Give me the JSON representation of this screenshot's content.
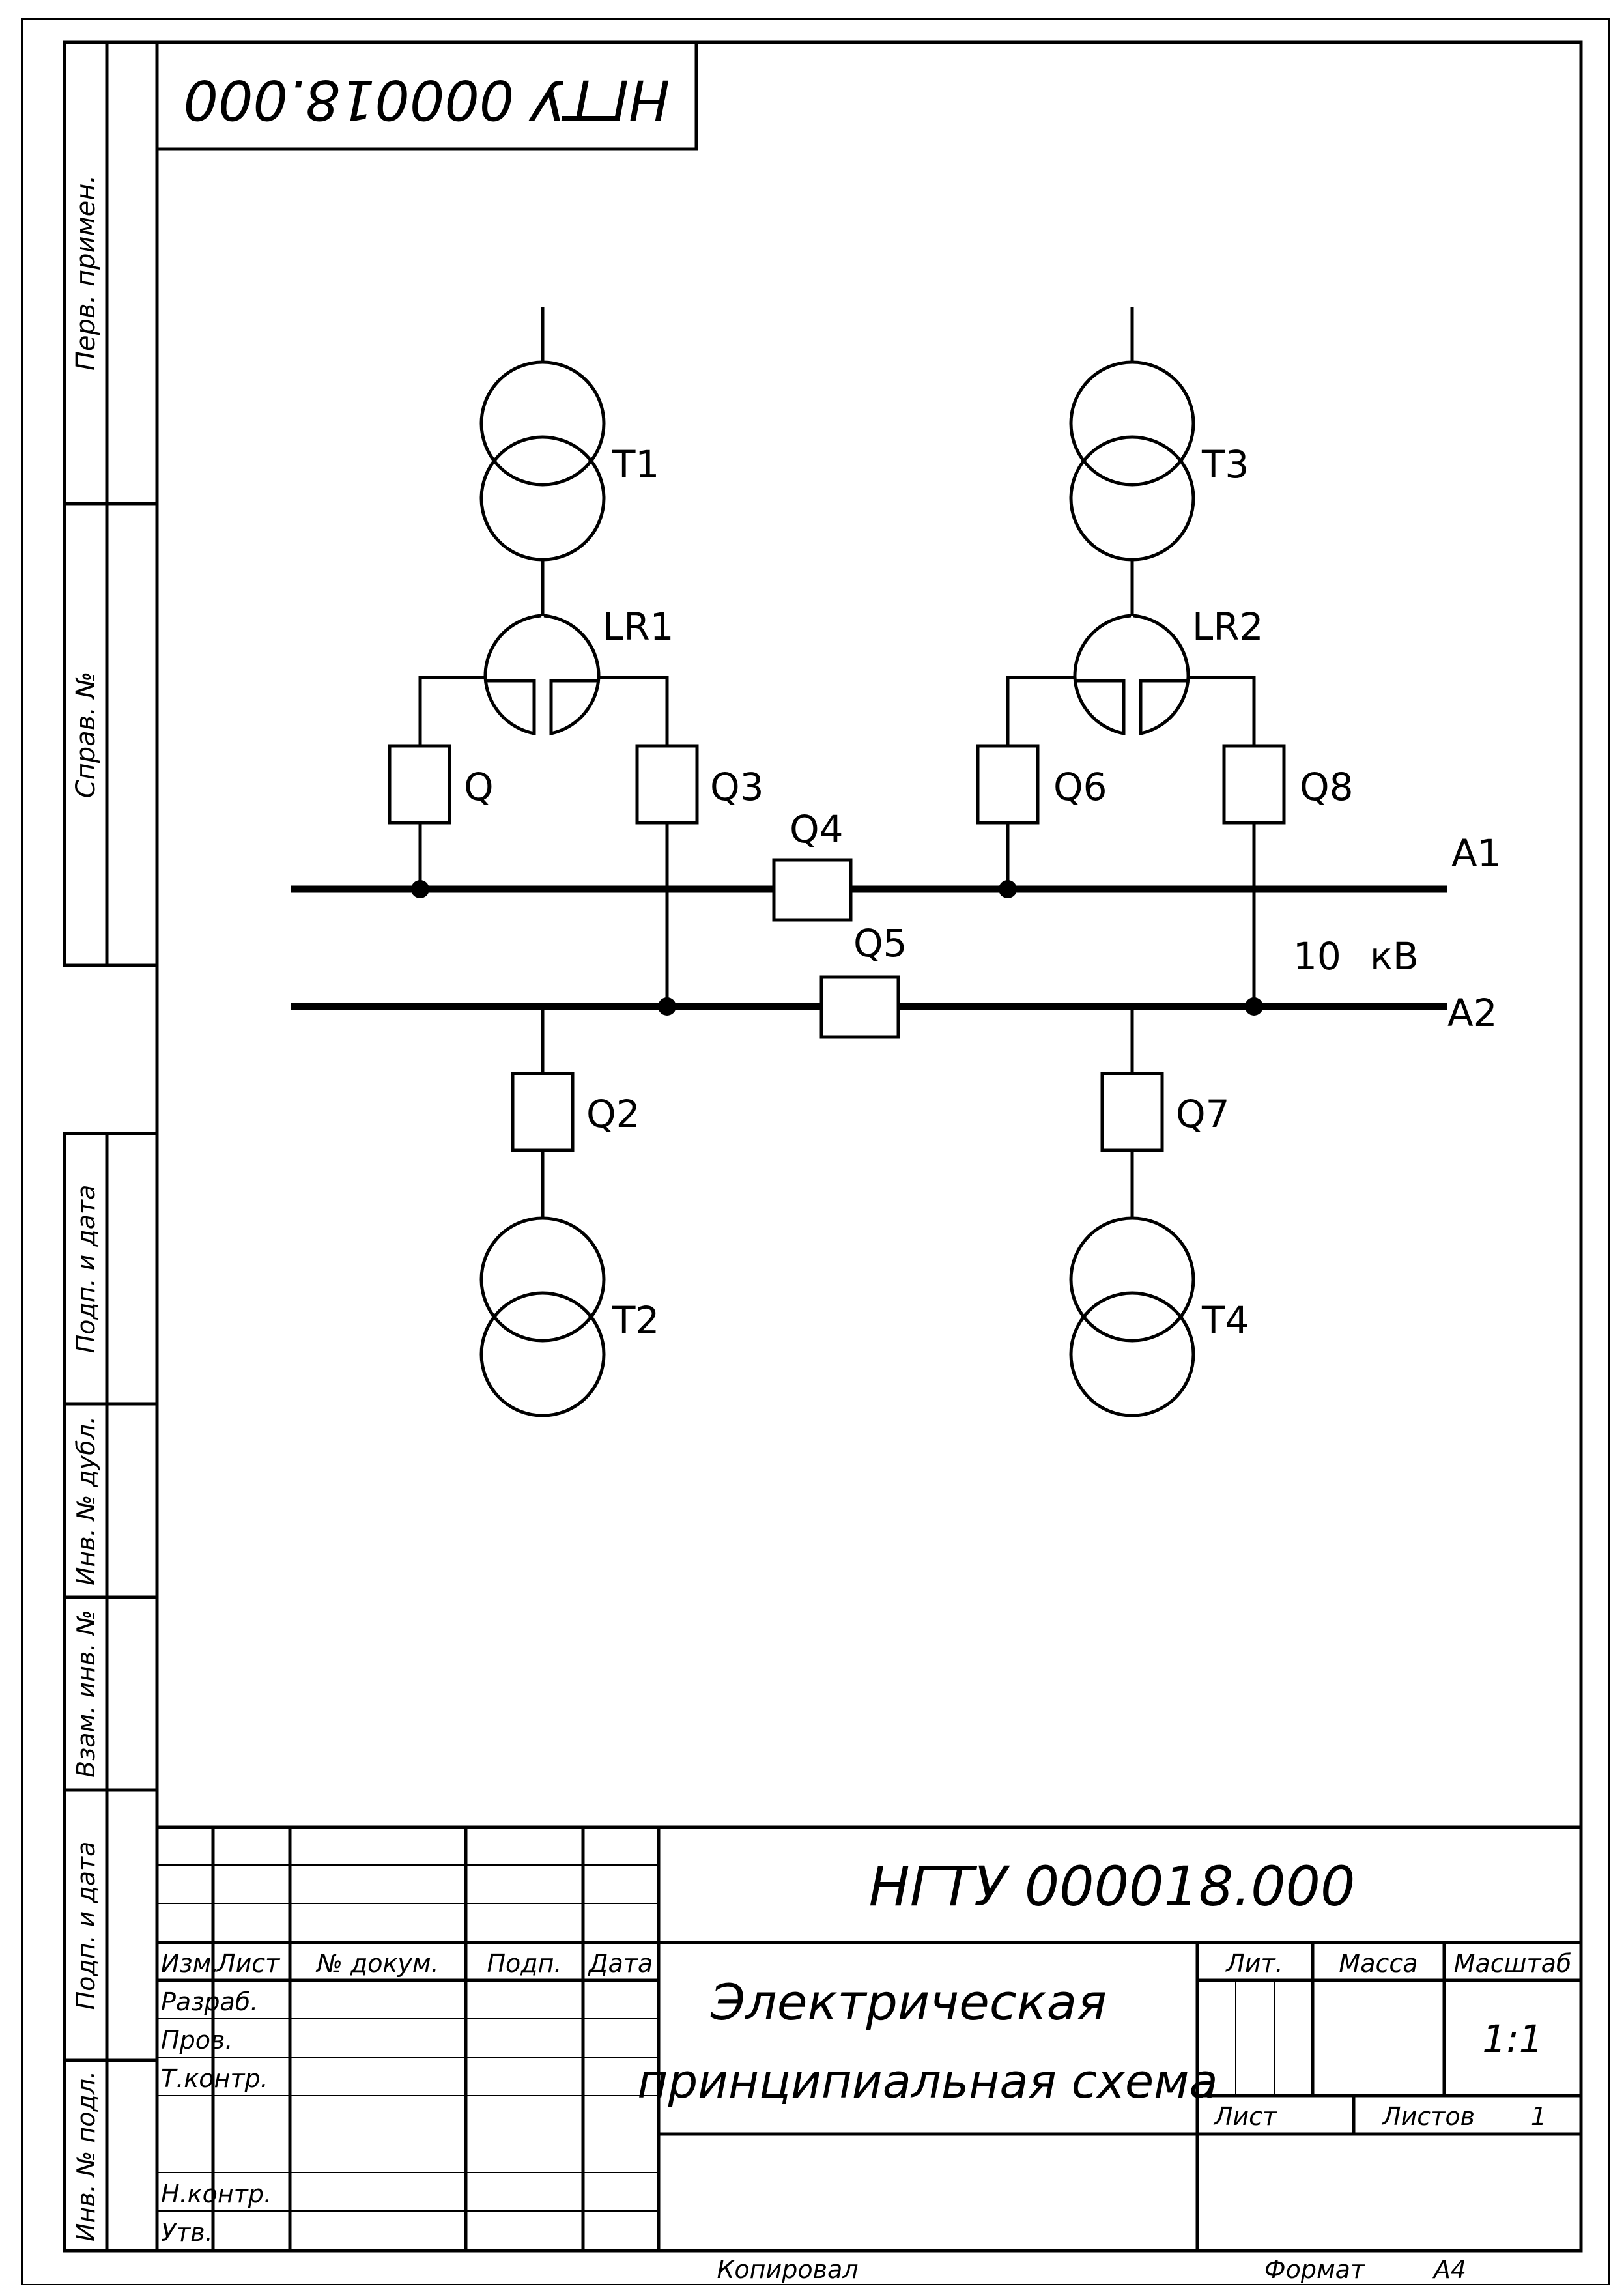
{
  "document": {
    "designation": "НГТУ 000018.000",
    "designation_rotated": "НГТУ 000018.000",
    "title_line1": "Электрическая",
    "title_line2": "принципиальная схема",
    "format_label": "Формат",
    "format_value": "А4",
    "copied_label": "Копировал"
  },
  "left_stamp": {
    "perv_primen": "Перв. примен.",
    "sprav_no": "Справ. №",
    "podp_data_1": "Подп. и дата",
    "inv_no_dubl": "Инв. № дубл.",
    "vzam_inv_no": "Взам. инв. №",
    "podp_data_2": "Подп. и дата",
    "inv_no_podl": "Инв. № подл."
  },
  "title_block": {
    "col_izm": "Изм.",
    "col_list": "Лист",
    "col_no_dokum": "№ докум.",
    "col_podp": "Подп.",
    "col_data": "Дата",
    "row_razrab": "Разраб.",
    "row_prov": "Пров.",
    "row_tkontr": "Т.контр.",
    "row_nkontr": "Н.контр.",
    "row_utv": "Утв.",
    "lit_label": "Лит.",
    "massa_label": "Масса",
    "masshtab_label": "Масштаб",
    "masshtab_value": "1:1",
    "list_label": "Лист",
    "listov_label": "Листов",
    "listov_value": "1"
  },
  "schematic": {
    "t1": "T1",
    "t2": "T2",
    "t3": "T3",
    "t4": "T4",
    "lr1": "LR1",
    "lr2": "LR2",
    "q": "Q",
    "q2": "Q2",
    "q3": "Q3",
    "q4": "Q4",
    "q5": "Q5",
    "q6": "Q6",
    "q7": "Q7",
    "q8": "Q8",
    "bus_a1": "A1",
    "bus_a2": "A2",
    "voltage_value": "10",
    "voltage_unit": "кВ"
  }
}
